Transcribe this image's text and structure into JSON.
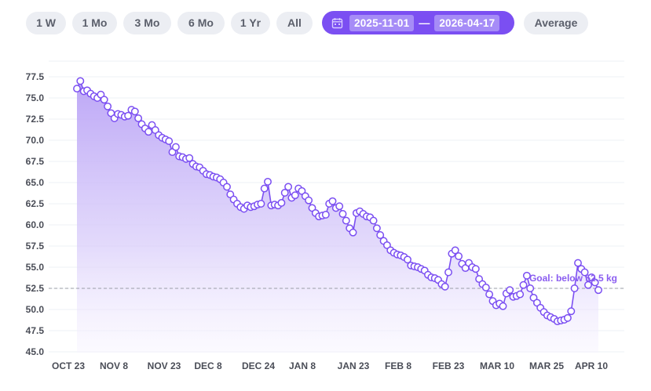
{
  "toolbar": {
    "ranges": [
      "1 W",
      "1 Mo",
      "3 Mo",
      "6 Mo",
      "1 Yr",
      "All"
    ],
    "date_start": "2025-11-01",
    "date_separator": "—",
    "date_end": "2026-04-17",
    "average_label": "Average",
    "accent_color": "#7b4ff2",
    "calendar_icon": "calendar-icon"
  },
  "chart_data": {
    "type": "area",
    "x_tick_labels": [
      "OCT 23",
      "NOV 8",
      "NOV 23",
      "DEC 8",
      "DEC 24",
      "JAN 8",
      "JAN 23",
      "FEB 8",
      "FEB 23",
      "MAR 10",
      "MAR 25",
      "APR 10"
    ],
    "y_tick_labels": [
      "77.5",
      "75.0",
      "72.5",
      "70.0",
      "67.5",
      "65.0",
      "62.5",
      "60.0",
      "57.5",
      "55.0",
      "52.5",
      "50.0",
      "47.5",
      "45.0"
    ],
    "ylim": [
      45.0,
      77.5
    ],
    "grid": true,
    "goal": {
      "value": 52.5,
      "label": "Goal: below 52.5 kg"
    },
    "line_color": "#7b4ff2",
    "values": [
      76.1,
      77.0,
      75.8,
      75.9,
      75.5,
      75.2,
      75.0,
      75.4,
      74.8,
      74.0,
      73.2,
      72.6,
      73.1,
      73.0,
      72.8,
      72.9,
      73.6,
      73.4,
      72.6,
      71.9,
      71.4,
      71.0,
      71.8,
      71.2,
      70.6,
      70.3,
      70.1,
      69.9,
      68.6,
      69.2,
      68.1,
      68.0,
      67.8,
      67.9,
      67.2,
      66.9,
      66.8,
      66.4,
      66.0,
      65.9,
      65.7,
      65.6,
      65.4,
      65.0,
      64.5,
      63.6,
      63.0,
      62.5,
      62.1,
      61.9,
      62.3,
      62.1,
      62.2,
      62.4,
      62.5,
      64.3,
      65.1,
      62.3,
      62.4,
      62.3,
      62.6,
      63.8,
      64.5,
      63.2,
      63.5,
      64.3,
      64.0,
      63.4,
      62.9,
      62.0,
      61.4,
      61.0,
      61.1,
      61.2,
      62.5,
      62.8,
      62.0,
      62.2,
      61.3,
      60.5,
      59.6,
      59.1,
      61.4,
      61.6,
      61.3,
      61.0,
      60.9,
      60.5,
      59.6,
      58.8,
      58.1,
      57.6,
      57.0,
      56.7,
      56.5,
      56.4,
      56.2,
      55.9,
      55.2,
      55.1,
      55.0,
      54.8,
      54.6,
      54.1,
      53.8,
      53.7,
      53.5,
      53.0,
      52.7,
      54.4,
      56.6,
      57.0,
      56.3,
      55.4,
      54.9,
      55.5,
      55.0,
      54.8,
      53.6,
      53.0,
      52.6,
      51.8,
      51.0,
      50.5,
      50.7,
      50.4,
      51.9,
      52.3,
      51.5,
      51.6,
      51.8,
      52.9,
      54.0,
      52.5,
      51.4,
      50.8,
      50.2,
      49.7,
      49.3,
      49.1,
      48.9,
      48.6,
      48.7,
      48.8,
      49.0,
      49.8,
      52.5,
      55.5,
      54.8,
      54.4,
      52.9,
      53.8,
      53.2,
      52.3
    ]
  }
}
